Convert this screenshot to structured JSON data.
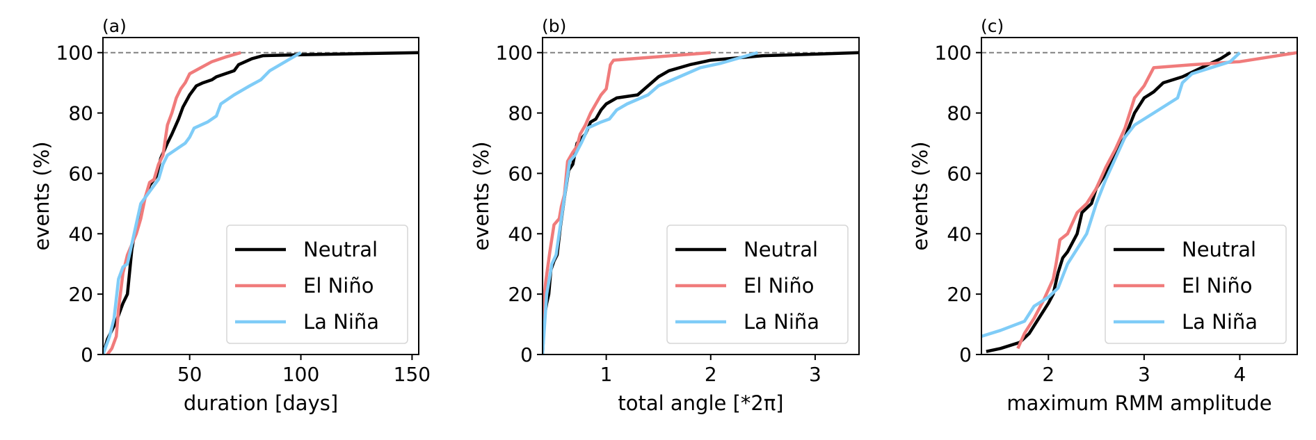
{
  "colors": {
    "Neutral": "#000000",
    "El Niño": "#f07b7b",
    "La Niña": "#7fccf7",
    "reference": "#808080"
  },
  "chart_data": [
    {
      "type": "line",
      "panel_label": "(a)",
      "xlabel": "duration [days]",
      "ylabel": "events (%)",
      "xlim": [
        11,
        153
      ],
      "ylim": [
        0,
        105
      ],
      "xticks": [
        50,
        100,
        150
      ],
      "yticks": [
        0,
        20,
        40,
        60,
        80,
        100
      ],
      "reference_line": 100,
      "legend": "bottom-right",
      "series": [
        {
          "name": "Neutral",
          "points": [
            [
              11,
              0
            ],
            [
              13,
              5
            ],
            [
              15,
              8
            ],
            [
              17,
              11
            ],
            [
              20,
              17
            ],
            [
              22,
              20
            ],
            [
              24,
              35
            ],
            [
              26,
              43
            ],
            [
              28,
              48
            ],
            [
              30,
              52
            ],
            [
              32,
              56
            ],
            [
              35,
              59
            ],
            [
              37,
              65
            ],
            [
              40,
              70
            ],
            [
              42,
              73
            ],
            [
              45,
              78
            ],
            [
              47,
              82
            ],
            [
              50,
              86
            ],
            [
              53,
              89
            ],
            [
              56,
              90
            ],
            [
              60,
              91
            ],
            [
              62,
              92
            ],
            [
              66,
              93
            ],
            [
              70,
              94
            ],
            [
              72,
              96
            ],
            [
              78,
              98
            ],
            [
              83,
              99
            ],
            [
              100,
              99.3
            ],
            [
              153,
              100
            ]
          ]
        },
        {
          "name": "El Niño",
          "points": [
            [
              13,
              0
            ],
            [
              15,
              2
            ],
            [
              17,
              6
            ],
            [
              18,
              15
            ],
            [
              20,
              27
            ],
            [
              22,
              33
            ],
            [
              26,
              40
            ],
            [
              28,
              45
            ],
            [
              30,
              52
            ],
            [
              32,
              57
            ],
            [
              34,
              58
            ],
            [
              36,
              63
            ],
            [
              38,
              66
            ],
            [
              40,
              76
            ],
            [
              42,
              80
            ],
            [
              44,
              85
            ],
            [
              46,
              88
            ],
            [
              48,
              90
            ],
            [
              50,
              93
            ],
            [
              55,
              95
            ],
            [
              60,
              97
            ],
            [
              66,
              98.5
            ],
            [
              73,
              100
            ]
          ]
        },
        {
          "name": "La Niña",
          "points": [
            [
              11,
              0
            ],
            [
              14,
              6
            ],
            [
              16,
              12
            ],
            [
              18,
              25
            ],
            [
              20,
              29
            ],
            [
              22,
              30
            ],
            [
              25,
              40
            ],
            [
              28,
              50
            ],
            [
              32,
              54
            ],
            [
              36,
              58
            ],
            [
              38,
              63
            ],
            [
              40,
              66
            ],
            [
              44,
              68
            ],
            [
              48,
              70
            ],
            [
              50,
              72
            ],
            [
              52,
              75
            ],
            [
              58,
              77
            ],
            [
              62,
              79
            ],
            [
              64,
              83
            ],
            [
              70,
              86
            ],
            [
              77,
              89
            ],
            [
              82,
              91
            ],
            [
              86,
              94
            ],
            [
              100,
              100
            ]
          ]
        }
      ]
    },
    {
      "type": "line",
      "panel_label": "(b)",
      "xlabel": "total angle [*2π]",
      "ylabel": "events (%)",
      "xlim": [
        0.39,
        3.42
      ],
      "ylim": [
        0,
        105
      ],
      "xticks": [
        1,
        2,
        3
      ],
      "yticks": [
        0,
        20,
        40,
        60,
        80,
        100
      ],
      "reference_line": 100,
      "legend": "bottom-right",
      "series": [
        {
          "name": "Neutral",
          "points": [
            [
              0.39,
              0
            ],
            [
              0.41,
              13
            ],
            [
              0.43,
              17
            ],
            [
              0.45,
              20
            ],
            [
              0.47,
              28
            ],
            [
              0.5,
              31
            ],
            [
              0.53,
              33
            ],
            [
              0.56,
              42
            ],
            [
              0.6,
              52
            ],
            [
              0.64,
              61
            ],
            [
              0.68,
              63
            ],
            [
              0.72,
              70
            ],
            [
              0.8,
              73
            ],
            [
              0.85,
              77
            ],
            [
              0.9,
              78
            ],
            [
              0.95,
              81
            ],
            [
              1.0,
              83
            ],
            [
              1.1,
              85
            ],
            [
              1.3,
              86
            ],
            [
              1.4,
              89
            ],
            [
              1.5,
              92
            ],
            [
              1.6,
              94
            ],
            [
              1.8,
              96
            ],
            [
              2.0,
              97.5
            ],
            [
              2.5,
              99
            ],
            [
              3.0,
              99.5
            ],
            [
              3.42,
              100
            ]
          ]
        },
        {
          "name": "El Niño",
          "points": [
            [
              0.39,
              0
            ],
            [
              0.4,
              17
            ],
            [
              0.42,
              24
            ],
            [
              0.46,
              34
            ],
            [
              0.5,
              43
            ],
            [
              0.55,
              45
            ],
            [
              0.57,
              49
            ],
            [
              0.6,
              53
            ],
            [
              0.63,
              64
            ],
            [
              0.68,
              67
            ],
            [
              0.72,
              69
            ],
            [
              0.75,
              73
            ],
            [
              0.8,
              76
            ],
            [
              0.85,
              80
            ],
            [
              0.9,
              83
            ],
            [
              0.95,
              86
            ],
            [
              1.0,
              88
            ],
            [
              1.04,
              96
            ],
            [
              1.07,
              97.5
            ],
            [
              2.0,
              100
            ]
          ]
        },
        {
          "name": "La Niña",
          "points": [
            [
              0.39,
              0
            ],
            [
              0.43,
              20
            ],
            [
              0.48,
              30
            ],
            [
              0.52,
              33
            ],
            [
              0.57,
              45
            ],
            [
              0.62,
              57
            ],
            [
              0.65,
              64
            ],
            [
              0.7,
              66
            ],
            [
              0.76,
              70
            ],
            [
              0.8,
              73
            ],
            [
              0.82,
              75
            ],
            [
              0.95,
              77
            ],
            [
              1.03,
              78
            ],
            [
              1.1,
              81
            ],
            [
              1.2,
              83
            ],
            [
              1.4,
              86
            ],
            [
              1.5,
              89
            ],
            [
              1.7,
              92
            ],
            [
              1.9,
              95
            ],
            [
              2.1,
              96.5
            ],
            [
              2.45,
              100
            ]
          ]
        }
      ]
    },
    {
      "type": "line",
      "panel_label": "(c)",
      "xlabel": "maximum RMM amplitude",
      "ylabel": "events (%)",
      "xlim": [
        1.3,
        4.6
      ],
      "ylim": [
        0,
        105
      ],
      "xticks": [
        2,
        3,
        4
      ],
      "yticks": [
        0,
        20,
        40,
        60,
        80,
        100
      ],
      "reference_line": 100,
      "legend": "bottom-right",
      "series": [
        {
          "name": "Neutral",
          "points": [
            [
              1.35,
              1
            ],
            [
              1.5,
              2
            ],
            [
              1.7,
              4
            ],
            [
              1.8,
              7
            ],
            [
              1.9,
              12
            ],
            [
              2.0,
              17
            ],
            [
              2.05,
              20
            ],
            [
              2.1,
              27
            ],
            [
              2.15,
              32
            ],
            [
              2.2,
              34
            ],
            [
              2.3,
              40
            ],
            [
              2.35,
              47
            ],
            [
              2.45,
              50
            ],
            [
              2.5,
              55
            ],
            [
              2.6,
              60
            ],
            [
              2.7,
              67
            ],
            [
              2.8,
              72
            ],
            [
              2.9,
              80
            ],
            [
              3.0,
              85
            ],
            [
              3.1,
              87
            ],
            [
              3.2,
              90
            ],
            [
              3.4,
              92
            ],
            [
              3.6,
              95
            ],
            [
              3.8,
              98
            ],
            [
              3.9,
              100
            ]
          ]
        },
        {
          "name": "El Niño",
          "points": [
            [
              1.68,
              2
            ],
            [
              1.75,
              7
            ],
            [
              1.85,
              12
            ],
            [
              1.95,
              18
            ],
            [
              2.05,
              25
            ],
            [
              2.08,
              30
            ],
            [
              2.12,
              38
            ],
            [
              2.2,
              40
            ],
            [
              2.3,
              47
            ],
            [
              2.4,
              50
            ],
            [
              2.5,
              55
            ],
            [
              2.6,
              62
            ],
            [
              2.7,
              68
            ],
            [
              2.8,
              75
            ],
            [
              2.9,
              85
            ],
            [
              3.0,
              89
            ],
            [
              3.1,
              95
            ],
            [
              3.5,
              96
            ],
            [
              4.0,
              97
            ],
            [
              4.6,
              100
            ]
          ]
        },
        {
          "name": "La Niña",
          "points": [
            [
              1.3,
              6
            ],
            [
              1.5,
              8
            ],
            [
              1.75,
              11
            ],
            [
              1.85,
              16
            ],
            [
              2.0,
              19
            ],
            [
              2.1,
              22
            ],
            [
              2.2,
              30
            ],
            [
              2.3,
              35
            ],
            [
              2.4,
              40
            ],
            [
              2.5,
              50
            ],
            [
              2.6,
              58
            ],
            [
              2.8,
              72
            ],
            [
              2.9,
              76
            ],
            [
              3.1,
              80
            ],
            [
              3.35,
              85
            ],
            [
              3.4,
              90
            ],
            [
              3.5,
              93
            ],
            [
              3.9,
              97
            ],
            [
              4.0,
              100
            ]
          ]
        }
      ]
    }
  ]
}
